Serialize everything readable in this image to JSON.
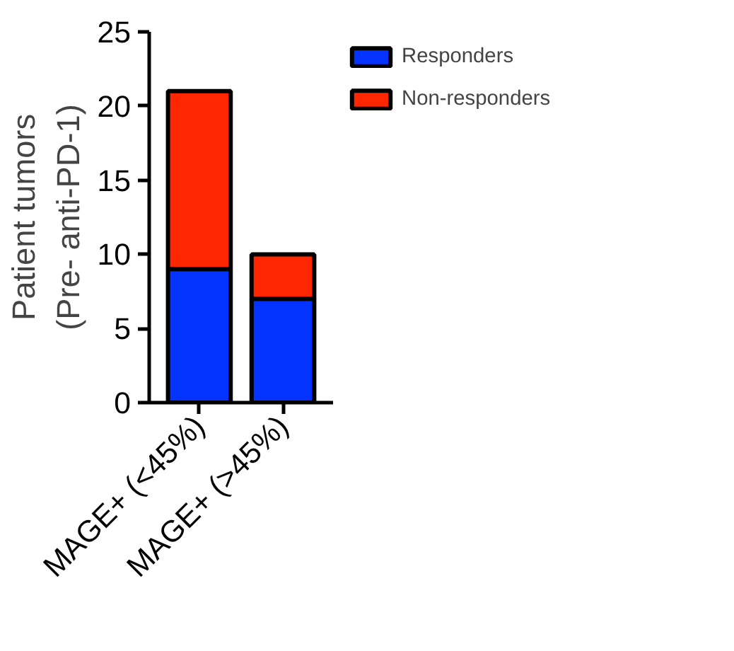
{
  "chart_data": {
    "type": "bar",
    "stacked": true,
    "ylabel": "Patient tumors\n(Pre- anti-PD-1)",
    "categories": [
      "MAGE+ (<45%)",
      "MAGE+ (>45%)"
    ],
    "series": [
      {
        "name": "Responders",
        "color": "#0433ff",
        "values": [
          9,
          7
        ]
      },
      {
        "name": "Non-responders",
        "color": "#ff2600",
        "values": [
          12,
          3
        ]
      }
    ],
    "ylim": [
      0,
      25
    ],
    "yticks": [
      0,
      5,
      10,
      15,
      20,
      25
    ],
    "grid": false,
    "legend": "top right"
  }
}
